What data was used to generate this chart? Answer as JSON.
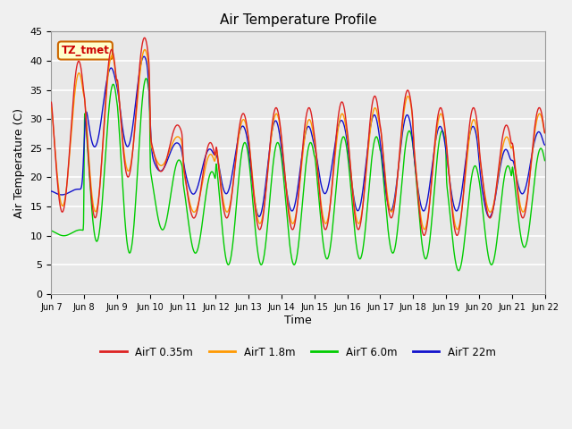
{
  "title": "Air Temperature Profile",
  "xlabel": "Time",
  "ylabel": "Air Temperature (C)",
  "annotation": "TZ_tmet",
  "ylim": [
    0,
    45
  ],
  "plot_bg_color": "#e8e8e8",
  "fig_bg_color": "#f0f0f0",
  "grid_color": "white",
  "colors": {
    "AirT 0.35m": "#dd2222",
    "AirT 1.8m": "#ff9900",
    "AirT 6.0m": "#00cc00",
    "AirT 22m": "#1111cc"
  },
  "x_tick_labels": [
    "Jun 7",
    "Jun 8",
    "Jun 9",
    "Jun 10",
    "Jun 11",
    "Jun 12",
    "Jun 13",
    "Jun 14",
    "Jun 15",
    "Jun 16",
    "Jun 17",
    "Jun 18",
    "Jun 19",
    "Jun 20",
    "Jun 21",
    "Jun 22"
  ],
  "y_ticks": [
    0,
    5,
    10,
    15,
    20,
    25,
    30,
    35,
    40,
    45
  ],
  "legend_entries": [
    "AirT 0.35m",
    "AirT 1.8m",
    "AirT 6.0m",
    "AirT 22m"
  ]
}
